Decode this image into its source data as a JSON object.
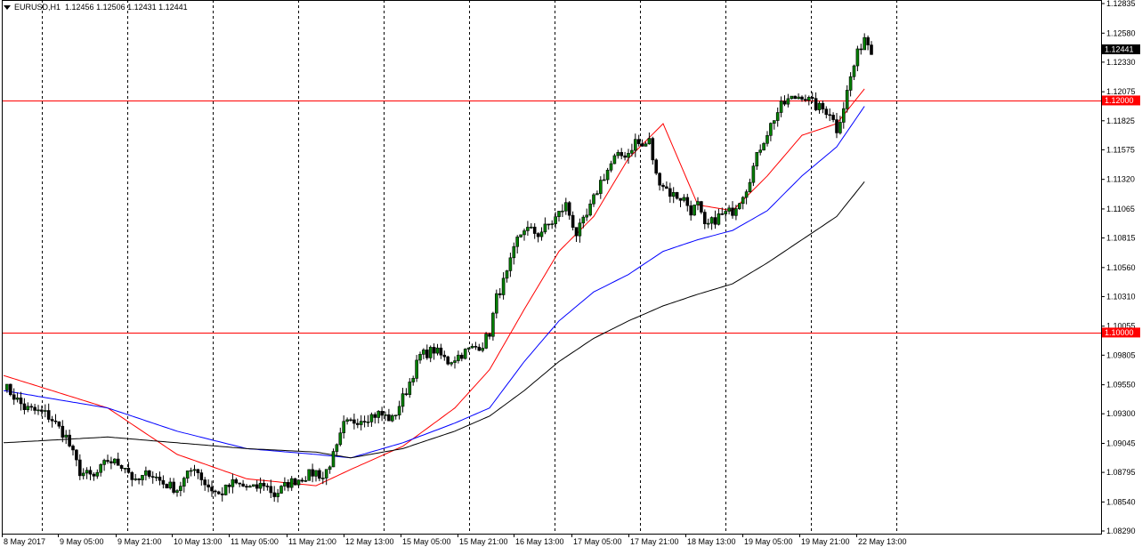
{
  "header": {
    "symbol": "EURUSD,H1",
    "ohlc": "1.12456 1.12506 1.12431 1.12441"
  },
  "colors": {
    "background": "#ffffff",
    "grid": "#000000",
    "hline": "#ff0000",
    "ma_fast": "#ff0000",
    "ma_mid": "#0000ff",
    "ma_slow": "#000000",
    "bull_body": "#008000",
    "bear_body": "#000000",
    "wick": "#000000",
    "price_label_bg": "#000000",
    "price_label_fg": "#ffffff"
  },
  "chart_data": {
    "type": "candlestick",
    "price_ticks": [
      "1.12835",
      "1.12580",
      "1.12330",
      "1.12075",
      "1.11825",
      "1.11575",
      "1.11320",
      "1.11065",
      "1.10815",
      "1.10560",
      "1.10310",
      "1.10055",
      "1.09805",
      "1.09550",
      "1.09300",
      "1.09045",
      "1.08795",
      "1.08540",
      "1.08290"
    ],
    "time_ticks": [
      "8 May 2017",
      "9 May 05:00",
      "9 May 21:00",
      "10 May 13:00",
      "11 May 05:00",
      "11 May 21:00",
      "12 May 13:00",
      "15 May 05:00",
      "15 May 21:00",
      "16 May 13:00",
      "17 May 05:00",
      "17 May 21:00",
      "18 May 13:00",
      "19 May 05:00",
      "19 May 21:00",
      "22 May 13:00"
    ],
    "ylim": [
      1.0829,
      1.12835
    ],
    "horizontal_lines": [
      {
        "label": "1.12000",
        "value": 1.12
      },
      {
        "label": "1.10000",
        "value": 1.1
      }
    ],
    "current_price": {
      "label": "1.12441",
      "value": 1.12441
    },
    "grid_separators": 10,
    "waypoints": [
      [
        0,
        1.0955
      ],
      [
        6,
        1.0935
      ],
      [
        12,
        1.093
      ],
      [
        14,
        1.0925
      ],
      [
        18,
        1.091
      ],
      [
        22,
        1.088
      ],
      [
        26,
        1.0875
      ],
      [
        30,
        1.089
      ],
      [
        35,
        1.0885
      ],
      [
        38,
        1.087
      ],
      [
        42,
        1.088
      ],
      [
        46,
        1.087
      ],
      [
        50,
        1.0865
      ],
      [
        55,
        1.0885
      ],
      [
        58,
        1.087
      ],
      [
        62,
        1.086
      ],
      [
        66,
        1.087
      ],
      [
        72,
        1.0865
      ],
      [
        75,
        1.087
      ],
      [
        78,
        1.086
      ],
      [
        82,
        1.087
      ],
      [
        86,
        1.0875
      ],
      [
        90,
        1.088
      ],
      [
        92,
        1.0875
      ],
      [
        96,
        1.09
      ],
      [
        98,
        1.092
      ],
      [
        102,
        1.0925
      ],
      [
        108,
        1.093
      ],
      [
        112,
        1.0925
      ],
      [
        116,
        1.095
      ],
      [
        120,
        1.098
      ],
      [
        124,
        1.0985
      ],
      [
        128,
        1.0975
      ],
      [
        134,
        1.0985
      ],
      [
        138,
        1.099
      ],
      [
        140,
        1.1
      ],
      [
        142,
        1.103
      ],
      [
        145,
        1.105
      ],
      [
        148,
        1.108
      ],
      [
        150,
        1.109
      ],
      [
        154,
        1.1085
      ],
      [
        158,
        1.1095
      ],
      [
        162,
        1.111
      ],
      [
        165,
        1.1085
      ],
      [
        168,
        1.11
      ],
      [
        172,
        1.113
      ],
      [
        176,
        1.115
      ],
      [
        180,
        1.1155
      ],
      [
        182,
        1.1165
      ],
      [
        184,
        1.116
      ],
      [
        186,
        1.1165
      ],
      [
        188,
        1.1135
      ],
      [
        192,
        1.112
      ],
      [
        196,
        1.1115
      ],
      [
        198,
        1.1105
      ],
      [
        200,
        1.111
      ],
      [
        202,
        1.109
      ],
      [
        206,
        1.11
      ],
      [
        210,
        1.1105
      ],
      [
        214,
        1.1125
      ],
      [
        218,
        1.116
      ],
      [
        222,
        1.1185
      ],
      [
        224,
        1.1195
      ],
      [
        226,
        1.12
      ],
      [
        230,
        1.1205
      ],
      [
        234,
        1.1195
      ],
      [
        238,
        1.119
      ],
      [
        240,
        1.1175
      ],
      [
        242,
        1.1195
      ],
      [
        244,
        1.122
      ],
      [
        246,
        1.124
      ],
      [
        248,
        1.1255
      ],
      [
        250,
        1.1244
      ]
    ],
    "ma_fast": [
      [
        0,
        1.0963
      ],
      [
        30,
        1.0935
      ],
      [
        50,
        1.0895
      ],
      [
        70,
        1.0874
      ],
      [
        90,
        1.0868
      ],
      [
        100,
        1.0882
      ],
      [
        115,
        1.0902
      ],
      [
        130,
        1.0935
      ],
      [
        140,
        1.0968
      ],
      [
        150,
        1.102
      ],
      [
        160,
        1.107
      ],
      [
        170,
        1.11
      ],
      [
        180,
        1.115
      ],
      [
        190,
        1.118
      ],
      [
        200,
        1.111
      ],
      [
        210,
        1.1105
      ],
      [
        220,
        1.1135
      ],
      [
        230,
        1.117
      ],
      [
        240,
        1.118
      ],
      [
        248,
        1.121
      ]
    ],
    "ma_mid": [
      [
        0,
        1.095
      ],
      [
        30,
        1.0935
      ],
      [
        50,
        1.0915
      ],
      [
        70,
        1.09
      ],
      [
        90,
        1.0895
      ],
      [
        100,
        1.0892
      ],
      [
        115,
        1.0905
      ],
      [
        130,
        1.0922
      ],
      [
        140,
        1.0935
      ],
      [
        150,
        1.0975
      ],
      [
        160,
        1.101
      ],
      [
        170,
        1.1035
      ],
      [
        180,
        1.105
      ],
      [
        190,
        1.107
      ],
      [
        200,
        1.108
      ],
      [
        210,
        1.1088
      ],
      [
        220,
        1.1105
      ],
      [
        230,
        1.1135
      ],
      [
        240,
        1.116
      ],
      [
        248,
        1.1195
      ]
    ],
    "ma_slow": [
      [
        0,
        1.0905
      ],
      [
        30,
        1.091
      ],
      [
        50,
        1.0905
      ],
      [
        70,
        1.09
      ],
      [
        90,
        1.0897
      ],
      [
        100,
        1.0892
      ],
      [
        115,
        1.09
      ],
      [
        130,
        1.0915
      ],
      [
        140,
        1.0928
      ],
      [
        150,
        1.095
      ],
      [
        160,
        1.0975
      ],
      [
        170,
        1.0995
      ],
      [
        180,
        1.101
      ],
      [
        190,
        1.1023
      ],
      [
        200,
        1.1033
      ],
      [
        210,
        1.1042
      ],
      [
        220,
        1.106
      ],
      [
        230,
        1.108
      ],
      [
        240,
        1.11
      ],
      [
        248,
        1.113
      ]
    ]
  }
}
